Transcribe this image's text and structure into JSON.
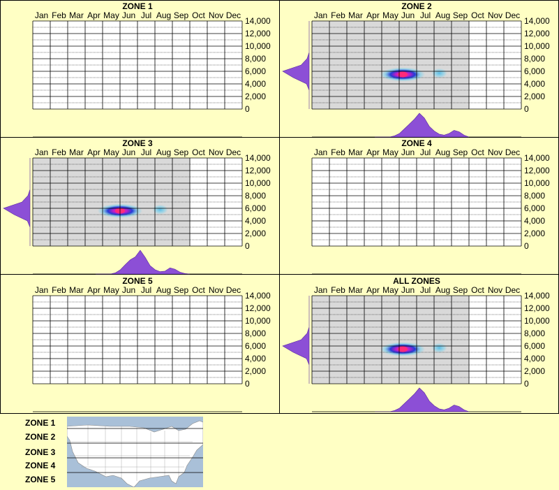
{
  "chart_data": [
    {
      "type": "heatmap",
      "title": "ZONE 1",
      "categories": [
        "Jan",
        "Feb",
        "Mar",
        "Apr",
        "May",
        "Jun",
        "Jul",
        "Aug",
        "Sep",
        "Oct",
        "Nov",
        "Dec"
      ],
      "yticks": [
        "14,000",
        "12,000",
        "10,000",
        "8,000",
        "6,000",
        "4,000",
        "2,000",
        "0"
      ],
      "ylim": [
        0,
        14000
      ],
      "active_months": [],
      "hotspots": [],
      "month_density": [],
      "elevation_density": []
    },
    {
      "type": "heatmap",
      "title": "ZONE 2",
      "categories": [
        "Jan",
        "Feb",
        "Mar",
        "Apr",
        "May",
        "Jun",
        "Jul",
        "Aug",
        "Sep",
        "Oct",
        "Nov",
        "Dec"
      ],
      "yticks": [
        "14,000",
        "12,000",
        "10,000",
        "8,000",
        "6,000",
        "4,000",
        "2,000",
        "0"
      ],
      "ylim": [
        0,
        14000
      ],
      "active_months": [
        "Jan",
        "Feb",
        "Mar",
        "Apr",
        "May",
        "Jun",
        "Jul",
        "Aug",
        "Sep"
      ],
      "hotspots": [
        {
          "month": 5.2,
          "elev": 5500,
          "weight": 1.0
        },
        {
          "month": 7.3,
          "elev": 5700,
          "weight": 0.3
        }
      ],
      "month_density": [
        0,
        0,
        0,
        0,
        0.05,
        0.15,
        0.35,
        0.55,
        0.75,
        1.0,
        0.8,
        0.45,
        0.25,
        0.12,
        0.08,
        0.15,
        0.28,
        0.22,
        0.08,
        0
      ],
      "elevation_density": [
        0,
        0,
        0,
        0,
        0,
        0,
        0.08,
        0.3,
        1.0,
        0.6,
        0.1,
        0,
        0,
        0,
        0
      ]
    },
    {
      "type": "heatmap",
      "title": "ZONE 3",
      "categories": [
        "Jan",
        "Feb",
        "Mar",
        "Apr",
        "May",
        "Jun",
        "Jul",
        "Aug",
        "Sep",
        "Oct",
        "Nov",
        "Dec"
      ],
      "yticks": [
        "14,000",
        "12,000",
        "10,000",
        "8,000",
        "6,000",
        "4,000",
        "2,000",
        "0"
      ],
      "ylim": [
        0,
        14000
      ],
      "active_months": [
        "Jan",
        "Feb",
        "Mar",
        "Apr",
        "May",
        "Jun",
        "Jul",
        "Aug",
        "Sep"
      ],
      "hotspots": [
        {
          "month": 5.0,
          "elev": 5600,
          "weight": 1.0
        },
        {
          "month": 7.3,
          "elev": 5800,
          "weight": 0.3
        }
      ],
      "month_density": [
        0,
        0,
        0,
        0,
        0.05,
        0.18,
        0.4,
        0.6,
        0.72,
        1.0,
        0.7,
        0.35,
        0.18,
        0.1,
        0.12,
        0.26,
        0.2,
        0.08,
        0.02,
        0
      ],
      "elevation_density": [
        0,
        0,
        0,
        0,
        0,
        0,
        0.08,
        0.3,
        1.0,
        0.6,
        0.1,
        0,
        0,
        0,
        0
      ]
    },
    {
      "type": "heatmap",
      "title": "ZONE 4",
      "categories": [
        "Jan",
        "Feb",
        "Mar",
        "Apr",
        "May",
        "Jun",
        "Jul",
        "Aug",
        "Sep",
        "Oct",
        "Nov",
        "Dec"
      ],
      "yticks": [
        "14,000",
        "12,000",
        "10,000",
        "8,000",
        "6,000",
        "4,000",
        "2,000",
        "0"
      ],
      "ylim": [
        0,
        14000
      ],
      "active_months": [],
      "hotspots": [],
      "month_density": [],
      "elevation_density": []
    },
    {
      "type": "heatmap",
      "title": "ZONE 5",
      "categories": [
        "Jan",
        "Feb",
        "Mar",
        "Apr",
        "May",
        "Jun",
        "Jul",
        "Aug",
        "Sep",
        "Oct",
        "Nov",
        "Dec"
      ],
      "yticks": [
        "14,000",
        "12,000",
        "10,000",
        "8,000",
        "6,000",
        "4,000",
        "2,000",
        "0"
      ],
      "ylim": [
        0,
        14000
      ],
      "active_months": [],
      "hotspots": [],
      "month_density": [],
      "elevation_density": []
    },
    {
      "type": "heatmap",
      "title": "ALL ZONES",
      "categories": [
        "Jan",
        "Feb",
        "Mar",
        "Apr",
        "May",
        "Jun",
        "Jul",
        "Aug",
        "Sep",
        "Oct",
        "Nov",
        "Dec"
      ],
      "yticks": [
        "14,000",
        "12,000",
        "10,000",
        "8,000",
        "6,000",
        "4,000",
        "2,000",
        "0"
      ],
      "ylim": [
        0,
        14000
      ],
      "active_months": [
        "Jan",
        "Feb",
        "Mar",
        "Apr",
        "May",
        "Jun",
        "Jul",
        "Aug",
        "Sep"
      ],
      "hotspots": [
        {
          "month": 5.2,
          "elev": 5500,
          "weight": 1.0
        },
        {
          "month": 7.3,
          "elev": 5700,
          "weight": 0.3
        }
      ],
      "month_density": [
        0,
        0,
        0,
        0,
        0.05,
        0.15,
        0.35,
        0.55,
        0.75,
        1.0,
        0.8,
        0.45,
        0.25,
        0.12,
        0.08,
        0.15,
        0.28,
        0.22,
        0.08,
        0
      ],
      "elevation_density": [
        0,
        0,
        0,
        0,
        0,
        0,
        0.08,
        0.3,
        1.0,
        0.6,
        0.1,
        0,
        0,
        0,
        0
      ]
    }
  ],
  "legend": {
    "zones": [
      "ZONE 1",
      "ZONE 2",
      "ZONE 3",
      "ZONE 4",
      "ZONE 5"
    ]
  },
  "colors": {
    "background": "#ffffc4",
    "active_month_fill": "#d9d9d9",
    "density_fill": "#8c4fd6",
    "hotspot_core": "#ff2a7a",
    "hotspot_mid": "#1a33d6",
    "hotspot_outer": "#6ad0f0"
  }
}
